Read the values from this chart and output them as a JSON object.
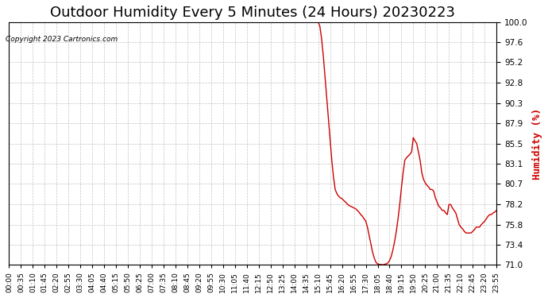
{
  "title": "Outdoor Humidity Every 5 Minutes (24 Hours) 20230223",
  "ylabel": "Humidity (%)",
  "copyright": "Copyright 2023 Cartronics.com",
  "line_color": "#cc0000",
  "bg_color": "#ffffff",
  "grid_color": "#aaaaaa",
  "ylim": [
    71.0,
    100.0
  ],
  "yticks": [
    71.0,
    73.4,
    75.8,
    78.2,
    80.7,
    83.1,
    85.5,
    87.9,
    90.3,
    92.8,
    95.2,
    97.6,
    100.0
  ],
  "title_fontsize": 13,
  "ylabel_color": "#cc0000",
  "data": {
    "00:00": 100.0,
    "00:05": 100.0,
    "00:10": 100.0,
    "00:15": 100.0,
    "00:20": 100.0,
    "00:25": 100.0,
    "00:30": 100.0,
    "00:35": 100.0,
    "00:40": 100.0,
    "00:45": 100.0,
    "00:50": 100.0,
    "00:55": 100.0,
    "01:00": 100.0,
    "01:05": 100.0,
    "01:10": 100.0,
    "01:15": 100.0,
    "01:20": 100.0,
    "01:25": 100.0,
    "01:30": 100.0,
    "01:35": 100.0,
    "01:40": 100.0,
    "01:45": 100.0,
    "01:50": 100.0,
    "01:55": 100.0,
    "02:00": 100.0,
    "02:05": 100.0,
    "02:10": 100.0,
    "02:15": 100.0,
    "02:20": 100.0,
    "02:25": 100.0,
    "02:30": 100.0,
    "02:35": 100.0,
    "02:40": 100.0,
    "02:45": 100.0,
    "02:50": 100.0,
    "02:55": 100.0,
    "03:00": 100.0,
    "03:05": 100.0,
    "03:10": 100.0,
    "03:15": 100.0,
    "03:20": 100.0,
    "03:25": 100.0,
    "03:30": 100.0,
    "03:35": 100.0,
    "03:40": 100.0,
    "03:45": 100.0,
    "03:50": 100.0,
    "03:55": 100.0,
    "04:00": 100.0,
    "04:05": 100.0,
    "04:10": 100.0,
    "04:15": 100.0,
    "04:20": 100.0,
    "04:25": 100.0,
    "04:30": 100.0,
    "04:35": 100.0,
    "04:40": 100.0,
    "04:45": 100.0,
    "04:50": 100.0,
    "04:55": 100.0,
    "05:00": 100.0,
    "05:05": 100.0,
    "05:10": 100.0,
    "05:15": 100.0,
    "05:20": 100.0,
    "05:25": 100.0,
    "05:30": 100.0,
    "05:35": 100.0,
    "05:40": 100.0,
    "05:45": 100.0,
    "05:50": 100.0,
    "05:55": 100.0,
    "06:00": 100.0,
    "06:05": 100.0,
    "06:10": 100.0,
    "06:15": 100.0,
    "06:20": 100.0,
    "06:25": 100.0,
    "06:30": 100.0,
    "06:35": 100.0,
    "06:40": 100.0,
    "06:45": 100.0,
    "06:50": 100.0,
    "06:55": 100.0,
    "07:00": 100.0,
    "07:05": 100.0,
    "07:10": 100.0,
    "07:15": 100.0,
    "07:20": 100.0,
    "07:25": 100.0,
    "07:30": 100.0,
    "07:35": 100.0,
    "07:40": 100.0,
    "07:45": 100.0,
    "07:50": 100.0,
    "07:55": 100.0,
    "08:00": 100.0,
    "08:05": 100.0,
    "08:10": 100.0,
    "08:15": 100.0,
    "08:20": 100.0,
    "08:25": 100.0,
    "08:30": 100.0,
    "08:35": 100.0,
    "08:40": 100.0,
    "08:45": 100.0,
    "08:50": 100.0,
    "08:55": 100.0,
    "09:00": 100.0,
    "09:05": 100.0,
    "09:10": 100.0,
    "09:15": 100.0,
    "09:20": 100.0,
    "09:25": 100.0,
    "09:30": 100.0,
    "09:35": 100.0,
    "09:40": 100.0,
    "09:45": 100.0,
    "09:50": 100.0,
    "09:55": 100.0,
    "10:00": 100.0,
    "10:05": 100.0,
    "10:10": 100.0,
    "10:15": 100.0,
    "10:20": 100.0,
    "10:25": 100.0,
    "10:30": 100.0,
    "10:35": 100.0,
    "10:40": 100.0,
    "10:45": 100.0,
    "10:50": 100.0,
    "10:55": 100.0,
    "11:00": 100.0,
    "11:05": 100.0,
    "11:10": 100.0,
    "11:15": 100.0,
    "11:20": 100.0,
    "11:25": 100.0,
    "11:30": 100.0,
    "11:35": 100.0,
    "11:40": 100.0,
    "11:45": 100.0,
    "11:50": 100.0,
    "11:55": 100.0,
    "12:00": 100.0,
    "12:05": 100.0,
    "12:10": 100.0,
    "12:15": 100.0,
    "12:20": 100.0,
    "12:25": 100.0,
    "12:30": 100.0,
    "12:35": 100.0,
    "12:40": 100.0,
    "12:45": 100.0,
    "12:50": 100.0,
    "12:55": 100.0,
    "13:00": 100.0,
    "13:05": 100.0,
    "13:10": 100.0,
    "13:15": 100.0,
    "13:20": 100.0,
    "13:25": 100.0,
    "13:30": 100.0,
    "13:35": 100.0,
    "13:40": 100.0,
    "13:45": 100.0,
    "13:50": 100.0,
    "13:55": 100.0,
    "14:00": 100.0,
    "14:05": 100.0,
    "14:10": 100.0,
    "14:15": 100.0,
    "14:20": 100.0,
    "14:25": 100.0,
    "14:30": 100.0,
    "14:35": 100.0,
    "14:40": 100.0,
    "14:45": 100.0,
    "14:50": 100.0,
    "14:55": 100.0,
    "15:00": 100.0,
    "15:05": 100.0,
    "15:10": 100.0,
    "15:15": 99.5,
    "15:20": 98.0,
    "15:25": 96.0,
    "15:30": 93.5,
    "15:35": 91.0,
    "15:40": 88.5,
    "15:45": 86.0,
    "15:50": 83.5,
    "15:55": 81.5,
    "16:00": 80.0,
    "16:05": 79.5,
    "16:10": 79.2,
    "16:15": 79.0,
    "16:20": 78.9,
    "16:25": 78.7,
    "16:30": 78.5,
    "16:35": 78.3,
    "16:40": 78.1,
    "16:45": 78.0,
    "16:50": 77.9,
    "16:55": 77.8,
    "17:00": 77.7,
    "17:05": 77.5,
    "17:10": 77.3,
    "17:15": 77.0,
    "17:20": 76.8,
    "17:25": 76.5,
    "17:30": 76.2,
    "17:35": 75.5,
    "17:40": 74.5,
    "17:45": 73.5,
    "17:50": 72.5,
    "17:55": 71.8,
    "18:00": 71.3,
    "18:05": 71.1,
    "18:10": 71.05,
    "18:15": 71.02,
    "18:20": 71.0,
    "18:25": 71.05,
    "18:30": 71.1,
    "18:35": 71.2,
    "18:40": 71.5,
    "18:45": 72.0,
    "18:50": 72.8,
    "18:55": 73.8,
    "19:00": 75.0,
    "19:05": 76.5,
    "19:10": 78.2,
    "19:15": 80.2,
    "19:20": 82.0,
    "19:25": 83.5,
    "19:30": 83.8,
    "19:35": 84.0,
    "19:40": 84.2,
    "19:45": 84.5,
    "19:50": 86.2,
    "19:55": 85.8,
    "20:00": 85.5,
    "20:05": 84.5,
    "20:10": 83.5,
    "20:15": 82.0,
    "20:20": 81.2,
    "20:25": 80.8,
    "20:30": 80.5,
    "20:35": 80.3,
    "20:40": 80.0,
    "20:45": 80.0,
    "20:50": 79.8,
    "20:55": 79.0,
    "21:00": 78.5,
    "21:05": 78.0,
    "21:10": 77.8,
    "21:15": 77.5,
    "21:20": 77.5,
    "21:25": 77.2,
    "21:30": 77.0,
    "21:35": 78.2,
    "21:40": 78.2,
    "21:45": 77.8,
    "21:50": 77.5,
    "21:55": 77.2,
    "22:00": 76.5,
    "22:05": 75.8,
    "22:10": 75.5,
    "22:15": 75.3,
    "22:20": 75.0,
    "22:25": 74.8,
    "22:30": 74.8,
    "22:35": 74.8,
    "22:40": 74.8,
    "22:45": 75.0,
    "22:50": 75.2,
    "22:55": 75.5,
    "23:00": 75.5,
    "23:05": 75.5,
    "23:10": 75.8,
    "23:15": 76.0,
    "23:20": 76.2,
    "23:25": 76.5,
    "23:30": 76.8,
    "23:35": 77.0,
    "23:40": 77.0,
    "23:45": 77.2,
    "23:50": 77.3,
    "23:55": 77.5
  },
  "xtick_labels": [
    "00:00",
    "00:35",
    "01:10",
    "01:45",
    "02:20",
    "02:55",
    "03:30",
    "04:05",
    "04:40",
    "05:15",
    "05:50",
    "06:25",
    "07:00",
    "07:35",
    "08:10",
    "08:45",
    "09:20",
    "09:55",
    "10:30",
    "11:05",
    "11:40",
    "12:15",
    "12:50",
    "13:25",
    "14:00",
    "14:35",
    "15:10",
    "15:45",
    "16:20",
    "16:55",
    "17:30",
    "18:05",
    "18:40",
    "19:15",
    "19:50",
    "20:25",
    "21:00",
    "21:35",
    "22:10",
    "22:45",
    "23:20",
    "23:55"
  ]
}
